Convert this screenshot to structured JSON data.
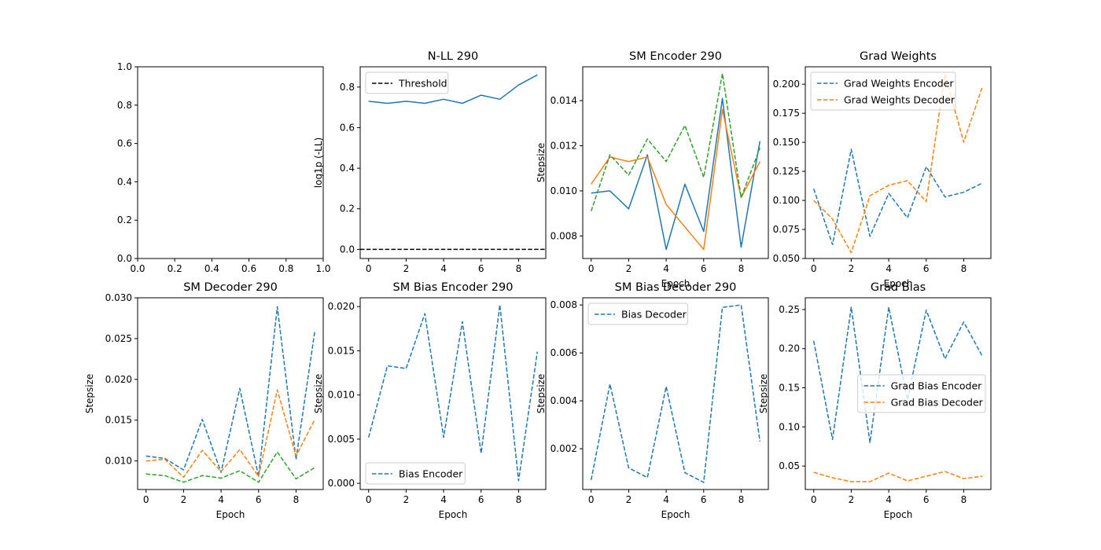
{
  "colors": {
    "c0": "#1f77b4",
    "c1": "#ff7f0e",
    "c2": "#2ca02c",
    "axis": "#000000",
    "threshold": "#000000"
  },
  "chart_data": [
    {
      "id": "empty",
      "type": "line",
      "title": "",
      "xlabel": "",
      "ylabel": "",
      "xlim": [
        0,
        1
      ],
      "ylim": [
        0,
        1
      ],
      "xticks": [
        0,
        0.2,
        0.4,
        0.6,
        0.8,
        1.0
      ],
      "xtick_labels": [
        "0.0",
        "0.2",
        "0.4",
        "0.6",
        "0.8",
        "1.0"
      ],
      "yticks": [
        0,
        0.2,
        0.4,
        0.6,
        0.8,
        1.0
      ],
      "ytick_labels": [
        "0.0",
        "0.2",
        "0.4",
        "0.6",
        "0.8",
        "1.0"
      ],
      "series": [],
      "legend": null
    },
    {
      "id": "nll",
      "type": "line",
      "title": "N-LL 290",
      "xlabel": "",
      "ylabel": "log1p (-LL)",
      "xlim": [
        -0.45,
        9.45
      ],
      "ylim": [
        -0.045,
        0.9
      ],
      "xticks": [
        0,
        2,
        4,
        6,
        8
      ],
      "xtick_labels": [
        "0",
        "2",
        "4",
        "6",
        "8"
      ],
      "yticks": [
        0,
        0.2,
        0.4,
        0.6,
        0.8
      ],
      "ytick_labels": [
        "0.0",
        "0.2",
        "0.4",
        "0.6",
        "0.8"
      ],
      "x": [
        0,
        1,
        2,
        3,
        4,
        5,
        6,
        7,
        8,
        9
      ],
      "series": [
        {
          "values": [
            0.73,
            0.72,
            0.73,
            0.72,
            0.74,
            0.72,
            0.76,
            0.74,
            0.81,
            0.86
          ],
          "color": "c0",
          "dashed": false
        },
        {
          "name": "Threshold",
          "hline": 0,
          "color": "threshold",
          "dashed": true
        }
      ],
      "legend": "upper-left"
    },
    {
      "id": "sm_encoder",
      "type": "line",
      "title": "SM Encoder 290",
      "xlabel": "Epoch",
      "ylabel": "Stepsize",
      "xlim": [
        -0.45,
        9.45
      ],
      "ylim": [
        0.007,
        0.0155
      ],
      "xticks": [
        0,
        2,
        4,
        6,
        8
      ],
      "xtick_labels": [
        "0",
        "2",
        "4",
        "6",
        "8"
      ],
      "yticks": [
        0.008,
        0.01,
        0.012,
        0.014
      ],
      "ytick_labels": [
        "0.008",
        "0.010",
        "0.012",
        "0.014"
      ],
      "x": [
        0,
        1,
        2,
        3,
        4,
        5,
        6,
        7,
        8,
        9
      ],
      "series": [
        {
          "values": [
            0.0099,
            0.01,
            0.0092,
            0.0116,
            0.0074,
            0.0103,
            0.0082,
            0.0141,
            0.0075,
            0.0122
          ],
          "color": "c0",
          "dashed": false
        },
        {
          "values": [
            0.0103,
            0.0115,
            0.0113,
            0.0115,
            0.0094,
            0.0084,
            0.0074,
            0.0136,
            0.0097,
            0.0113
          ],
          "color": "c1",
          "dashed": false
        },
        {
          "values": [
            0.0091,
            0.0116,
            0.0107,
            0.0123,
            0.0113,
            0.0129,
            0.0106,
            0.0152,
            0.0097,
            0.0119
          ],
          "color": "c2",
          "dashed": true
        }
      ],
      "legend": null
    },
    {
      "id": "grad_weights",
      "type": "line",
      "title": "Grad Weights",
      "xlabel": "Epoch",
      "ylabel": "",
      "xlim": [
        -0.45,
        9.45
      ],
      "ylim": [
        0.05,
        0.215
      ],
      "xticks": [
        0,
        2,
        4,
        6,
        8
      ],
      "xtick_labels": [
        "0",
        "2",
        "4",
        "6",
        "8"
      ],
      "yticks": [
        0.05,
        0.075,
        0.1,
        0.125,
        0.15,
        0.175,
        0.2
      ],
      "ytick_labels": [
        "0.050",
        "0.075",
        "0.100",
        "0.125",
        "0.150",
        "0.175",
        "0.200"
      ],
      "x": [
        0,
        1,
        2,
        3,
        4,
        5,
        6,
        7,
        8,
        9
      ],
      "series": [
        {
          "name": "Grad Weights Encoder",
          "values": [
            0.11,
            0.062,
            0.144,
            0.069,
            0.106,
            0.085,
            0.129,
            0.103,
            0.107,
            0.115
          ],
          "color": "c0",
          "dashed": true
        },
        {
          "name": "Grad Weights Decoder",
          "values": [
            0.1,
            0.084,
            0.055,
            0.104,
            0.113,
            0.117,
            0.099,
            0.209,
            0.15,
            0.198
          ],
          "color": "c1",
          "dashed": true
        }
      ],
      "legend": "upper-left"
    },
    {
      "id": "sm_decoder",
      "type": "line",
      "title": "SM Decoder 290",
      "xlabel": "Epoch",
      "ylabel": "Stepsize",
      "xlim": [
        -0.45,
        9.45
      ],
      "ylim": [
        0.0065,
        0.03
      ],
      "xticks": [
        0,
        2,
        4,
        6,
        8
      ],
      "xtick_labels": [
        "0",
        "2",
        "4",
        "6",
        "8"
      ],
      "yticks": [
        0.01,
        0.015,
        0.02,
        0.025,
        0.03
      ],
      "ytick_labels": [
        "0.010",
        "0.015",
        "0.020",
        "0.025",
        "0.030"
      ],
      "x": [
        0,
        1,
        2,
        3,
        4,
        5,
        6,
        7,
        8,
        9
      ],
      "series": [
        {
          "values": [
            0.0106,
            0.0103,
            0.0089,
            0.0151,
            0.0086,
            0.0189,
            0.0081,
            0.0289,
            0.0102,
            0.0259
          ],
          "color": "c0",
          "dashed": true
        },
        {
          "values": [
            0.01,
            0.0102,
            0.008,
            0.0113,
            0.0087,
            0.0114,
            0.0081,
            0.0187,
            0.0106,
            0.0151
          ],
          "color": "c1",
          "dashed": true
        },
        {
          "values": [
            0.0084,
            0.0082,
            0.0074,
            0.0082,
            0.0079,
            0.0088,
            0.0074,
            0.0111,
            0.0078,
            0.0092
          ],
          "color": "c2",
          "dashed": true
        }
      ],
      "legend": null
    },
    {
      "id": "sm_bias_encoder",
      "type": "line",
      "title": "SM Bias Encoder 290",
      "xlabel": "Epoch",
      "ylabel": "Stepsize",
      "xlim": [
        -0.45,
        9.45
      ],
      "ylim": [
        -0.0007,
        0.021
      ],
      "xticks": [
        0,
        2,
        4,
        6,
        8
      ],
      "xtick_labels": [
        "0",
        "2",
        "4",
        "6",
        "8"
      ],
      "yticks": [
        0,
        0.005,
        0.01,
        0.015,
        0.02
      ],
      "ytick_labels": [
        "0.000",
        "0.005",
        "0.010",
        "0.015",
        "0.020"
      ],
      "x": [
        0,
        1,
        2,
        3,
        4,
        5,
        6,
        7,
        8,
        9
      ],
      "series": [
        {
          "name": "Bias Encoder",
          "values": [
            0.0052,
            0.0133,
            0.013,
            0.0192,
            0.0052,
            0.0183,
            0.0034,
            0.0202,
            0.0003,
            0.0149
          ],
          "color": "c0",
          "dashed": true
        }
      ],
      "legend": "lower-left"
    },
    {
      "id": "sm_bias_decoder",
      "type": "line",
      "title": "SM Bias Decoder 290",
      "xlabel": "Epoch",
      "ylabel": "Stepsize",
      "xlim": [
        -0.45,
        9.45
      ],
      "ylim": [
        0.0003,
        0.0083
      ],
      "xticks": [
        0,
        2,
        4,
        6,
        8
      ],
      "xtick_labels": [
        "0",
        "2",
        "4",
        "6",
        "8"
      ],
      "yticks": [
        0.002,
        0.004,
        0.006,
        0.008
      ],
      "ytick_labels": [
        "0.002",
        "0.004",
        "0.006",
        "0.008"
      ],
      "x": [
        0,
        1,
        2,
        3,
        4,
        5,
        6,
        7,
        8,
        9
      ],
      "series": [
        {
          "name": "Bias Decoder",
          "values": [
            0.0007,
            0.0047,
            0.0012,
            0.0008,
            0.0046,
            0.001,
            0.0006,
            0.0079,
            0.008,
            0.0023
          ],
          "color": "c0",
          "dashed": true
        }
      ],
      "legend": "upper-left"
    },
    {
      "id": "grad_bias",
      "type": "line",
      "title": "Grad Bias",
      "xlabel": "Epoch",
      "ylabel": "Stepsize",
      "xlim": [
        -0.45,
        9.45
      ],
      "ylim": [
        0.02,
        0.265
      ],
      "xticks": [
        0,
        2,
        4,
        6,
        8
      ],
      "xtick_labels": [
        "0",
        "2",
        "4",
        "6",
        "8"
      ],
      "yticks": [
        0.05,
        0.1,
        0.15,
        0.2,
        0.25
      ],
      "ytick_labels": [
        "0.05",
        "0.10",
        "0.15",
        "0.20",
        "0.25"
      ],
      "x": [
        0,
        1,
        2,
        3,
        4,
        5,
        6,
        7,
        8,
        9
      ],
      "series": [
        {
          "name": "Grad Bias Encoder",
          "values": [
            0.21,
            0.084,
            0.253,
            0.08,
            0.253,
            0.135,
            0.249,
            0.187,
            0.234,
            0.19
          ],
          "color": "c0",
          "dashed": true
        },
        {
          "name": "Grad Bias Decoder",
          "values": [
            0.042,
            0.035,
            0.03,
            0.03,
            0.041,
            0.031,
            0.037,
            0.043,
            0.034,
            0.037
          ],
          "color": "c1",
          "dashed": true
        }
      ],
      "legend": "center-right"
    }
  ]
}
